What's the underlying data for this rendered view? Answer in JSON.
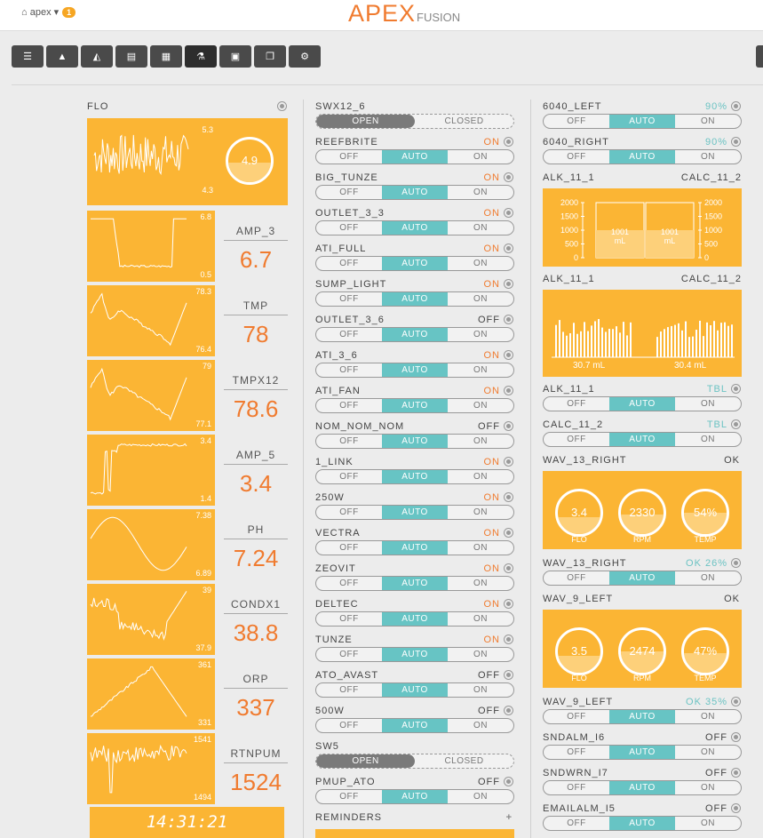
{
  "header": {
    "home_label": "apex",
    "notification_count": "1",
    "logo_main": "APEX",
    "logo_sub": "FUSION"
  },
  "toolbar": {
    "buttons": [
      "list-icon",
      "alert-icon",
      "chart-icon",
      "table-icon",
      "calendar-icon",
      "flask-icon",
      "calendar-check-icon",
      "copy-icon",
      "cogs-icon"
    ],
    "active": "flask-icon"
  },
  "col1": {
    "flo": {
      "title": "FLO",
      "max": "5.3",
      "min": "4.3",
      "value": "4.9",
      "fill": 0.45
    },
    "metrics": [
      {
        "name": "AMP_3",
        "max": "6.8",
        "min": "0.5",
        "value": "6.7",
        "shape": "amp"
      },
      {
        "name": "TMP",
        "max": "78.3",
        "min": "76.4",
        "value": "78",
        "shape": "tmp"
      },
      {
        "name": "TMPX12",
        "max": "79",
        "min": "77.1",
        "value": "78.6",
        "shape": "tmp"
      },
      {
        "name": "AMP_5",
        "max": "3.4",
        "min": "1.4",
        "value": "3.4",
        "shape": "amp5"
      },
      {
        "name": "PH",
        "max": "7.38",
        "min": "6.89",
        "value": "7.24",
        "shape": "ph"
      },
      {
        "name": "CONDX1",
        "max": "39",
        "min": "37.9",
        "value": "38.8",
        "shape": "cond"
      },
      {
        "name": "ORP",
        "max": "361",
        "min": "331",
        "value": "337",
        "shape": "orp"
      },
      {
        "name": "RTNPUM",
        "max": "1541",
        "min": "1494",
        "value": "1524",
        "shape": "rtn"
      }
    ],
    "clock": "14:31:21"
  },
  "col2": {
    "outlets": [
      {
        "name": "SWX12_6",
        "kind": "oc",
        "left": "OPEN",
        "right": "CLOSED"
      },
      {
        "name": "REEFBRITE",
        "status": "ON"
      },
      {
        "name": "BIG_TUNZE",
        "status": "ON"
      },
      {
        "name": "OUTLET_3_3",
        "status": "ON"
      },
      {
        "name": "ATI_FULL",
        "status": "ON"
      },
      {
        "name": "SUMP_LIGHT",
        "status": "ON"
      },
      {
        "name": "OUTLET_3_6",
        "status": "OFF"
      },
      {
        "name": "ATI_3_6",
        "status": "ON"
      },
      {
        "name": "ATI_FAN",
        "status": "ON"
      },
      {
        "name": "NOM_NOM_NOM",
        "status": "OFF"
      },
      {
        "name": "1_LINK",
        "status": "ON"
      },
      {
        "name": "250W",
        "status": "ON"
      },
      {
        "name": "VECTRA",
        "status": "ON"
      },
      {
        "name": "ZEOVIT",
        "status": "ON"
      },
      {
        "name": "DELTEC",
        "status": "ON"
      },
      {
        "name": "TUNZE",
        "status": "ON"
      },
      {
        "name": "ATO_AVAST",
        "status": "OFF"
      },
      {
        "name": "500W",
        "status": "OFF"
      },
      {
        "name": "SW5",
        "kind": "oc",
        "left": "OPEN",
        "right": "CLOSED"
      },
      {
        "name": "PMUP_ATO",
        "status": "OFF"
      }
    ],
    "reminders": "REMINDERS",
    "labels": {
      "off": "OFF",
      "auto": "AUTO",
      "on": "ON"
    }
  },
  "col3": {
    "r1": {
      "name": "6040_LEFT",
      "status": "90%"
    },
    "r2": {
      "name": "6040_RIGHT",
      "status": "90%"
    },
    "dos1": {
      "left": "ALK_11_1",
      "right": "CALC_11_2",
      "ticks": [
        "2000",
        "1500",
        "1000",
        "500",
        "0"
      ],
      "v1": "1001",
      "v2": "1001",
      "unit": "mL",
      "level": 0.5
    },
    "dos2": {
      "left": "ALK_11_1",
      "right": "CALC_11_2",
      "v1": "30.7 mL",
      "v2": "30.4 mL"
    },
    "r3": {
      "name": "ALK_11_1",
      "status": "TBL"
    },
    "r4": {
      "name": "CALC_11_2",
      "status": "TBL"
    },
    "wav13": {
      "title": "WAV_13_RIGHT",
      "status": "OK",
      "rings": [
        {
          "v": "3.4",
          "l": "FLO",
          "fill": 0.4
        },
        {
          "v": "2330",
          "l": "RPM",
          "fill": 0.45
        },
        {
          "v": "54%",
          "l": "TEMP",
          "fill": 0.5
        }
      ]
    },
    "r5": {
      "name": "WAV_13_RIGHT",
      "status": "OK 26%"
    },
    "wav9": {
      "title": "WAV_9_LEFT",
      "status": "OK",
      "rings": [
        {
          "v": "3.5",
          "l": "FLO",
          "fill": 0.4
        },
        {
          "v": "2474",
          "l": "RPM",
          "fill": 0.5
        },
        {
          "v": "47%",
          "l": "TEMP",
          "fill": 0.45
        }
      ]
    },
    "r6": {
      "name": "WAV_9_LEFT",
      "status": "OK 35%"
    },
    "r7": {
      "name": "SNDALM_I6",
      "status": "OFF"
    },
    "r8": {
      "name": "SNDWRN_I7",
      "status": "OFF"
    },
    "r9": {
      "name": "EMAILALM_I5",
      "status": "OFF"
    }
  }
}
